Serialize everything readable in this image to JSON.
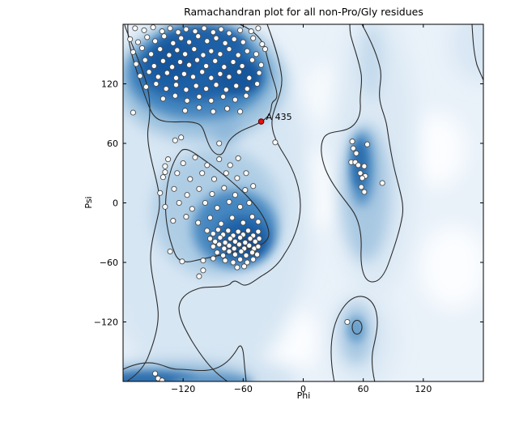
{
  "figure": {
    "title": "Ramachandran plot for all non-Pro/Gly residues"
  },
  "axes": {
    "xlabel": "Phi",
    "ylabel": "Psi",
    "xlim": [
      -180,
      180
    ],
    "ylim": [
      -180,
      180
    ],
    "xticks": [
      {
        "value": -120,
        "label": "−120"
      },
      {
        "value": -60,
        "label": "−60"
      },
      {
        "value": 0,
        "label": "0"
      },
      {
        "value": 60,
        "label": "60"
      },
      {
        "value": 120,
        "label": "120"
      }
    ],
    "yticks": [
      {
        "value": 120,
        "label": "120"
      },
      {
        "value": 60,
        "label": "60"
      },
      {
        "value": 0,
        "label": "0"
      },
      {
        "value": -60,
        "label": "−60"
      },
      {
        "value": -120,
        "label": "−120"
      }
    ]
  },
  "colors": {
    "density_dark": "#1d61a7",
    "density_mid": "#9dc2de",
    "density_light": "#d7e6f3",
    "plot_background": "#e9f1f9",
    "contour_line": "#2b2b2b",
    "point_fill": "#ffffff",
    "point_edge": "#4a4a4a",
    "outlier_fill": "#e51010",
    "outlier_edge": "#5a0000"
  },
  "chart_data": {
    "type": "scatter",
    "title": "Ramachandran plot for all non-Pro/Gly residues",
    "xlabel": "Phi",
    "ylabel": "Psi",
    "xlim": [
      -180,
      180
    ],
    "ylim": [
      -180,
      180
    ],
    "background": "blue kernel-density estimate with two contour levels",
    "legend": "none",
    "series": [
      {
        "name": "non-Pro/Gly residues",
        "marker": "circle",
        "fill": "#ffffff",
        "edge": "#4a4a4a",
        "points": [
          [
            -168,
            176
          ],
          [
            -159,
            174
          ],
          [
            -150,
            177
          ],
          [
            -141,
            173
          ],
          [
            -133,
            176
          ],
          [
            -125,
            172
          ],
          [
            -117,
            175
          ],
          [
            -108,
            173
          ],
          [
            -99,
            176
          ],
          [
            -90,
            172
          ],
          [
            -82,
            175
          ],
          [
            -74,
            171
          ],
          [
            -63,
            174
          ],
          [
            -52,
            173
          ],
          [
            -45,
            176
          ],
          [
            -173,
            165
          ],
          [
            -165,
            162
          ],
          [
            -156,
            167
          ],
          [
            -148,
            163
          ],
          [
            -139,
            168
          ],
          [
            -130,
            161
          ],
          [
            -122,
            166
          ],
          [
            -114,
            162
          ],
          [
            -105,
            168
          ],
          [
            -96,
            163
          ],
          [
            -87,
            166
          ],
          [
            -78,
            161
          ],
          [
            -69,
            165
          ],
          [
            -60,
            162
          ],
          [
            -50,
            166
          ],
          [
            -41,
            160
          ],
          [
            -170,
            152
          ],
          [
            -161,
            156
          ],
          [
            -152,
            150
          ],
          [
            -143,
            155
          ],
          [
            -134,
            149
          ],
          [
            -126,
            154
          ],
          [
            -118,
            150
          ],
          [
            -109,
            155
          ],
          [
            -100,
            149
          ],
          [
            -92,
            153
          ],
          [
            -83,
            150
          ],
          [
            -74,
            155
          ],
          [
            -65,
            149
          ],
          [
            -56,
            153
          ],
          [
            -47,
            150
          ],
          [
            -38,
            155
          ],
          [
            -167,
            140
          ],
          [
            -158,
            144
          ],
          [
            -149,
            138
          ],
          [
            -140,
            143
          ],
          [
            -131,
            137
          ],
          [
            -123,
            142
          ],
          [
            -114,
            139
          ],
          [
            -106,
            144
          ],
          [
            -97,
            138
          ],
          [
            -88,
            143
          ],
          [
            -79,
            137
          ],
          [
            -70,
            142
          ],
          [
            -61,
            138
          ],
          [
            -51,
            144
          ],
          [
            -42,
            139
          ],
          [
            -163,
            128
          ],
          [
            -154,
            132
          ],
          [
            -145,
            127
          ],
          [
            -136,
            131
          ],
          [
            -127,
            126
          ],
          [
            -119,
            130
          ],
          [
            -110,
            127
          ],
          [
            -101,
            132
          ],
          [
            -92,
            126
          ],
          [
            -83,
            130
          ],
          [
            -74,
            127
          ],
          [
            -64,
            132
          ],
          [
            -54,
            126
          ],
          [
            -44,
            131
          ],
          [
            -157,
            117
          ],
          [
            -147,
            120
          ],
          [
            -137,
            115
          ],
          [
            -127,
            119
          ],
          [
            -117,
            114
          ],
          [
            -107,
            118
          ],
          [
            -97,
            115
          ],
          [
            -87,
            119
          ],
          [
            -77,
            114
          ],
          [
            -67,
            118
          ],
          [
            -56,
            115
          ],
          [
            -46,
            120
          ],
          [
            -140,
            105
          ],
          [
            -128,
            108
          ],
          [
            -116,
            103
          ],
          [
            -104,
            107
          ],
          [
            -92,
            103
          ],
          [
            -80,
            107
          ],
          [
            -68,
            104
          ],
          [
            -57,
            108
          ],
          [
            -118,
            93
          ],
          [
            -104,
            96
          ],
          [
            -90,
            92
          ],
          [
            -76,
            95
          ],
          [
            -63,
            92
          ],
          [
            -135,
            44
          ],
          [
            -120,
            40
          ],
          [
            -108,
            46
          ],
          [
            -96,
            38
          ],
          [
            -84,
            44
          ],
          [
            -73,
            38
          ],
          [
            -65,
            45
          ],
          [
            -140,
            26
          ],
          [
            -126,
            30
          ],
          [
            -113,
            24
          ],
          [
            -101,
            30
          ],
          [
            -89,
            24
          ],
          [
            -77,
            30
          ],
          [
            -66,
            25
          ],
          [
            -57,
            30
          ],
          [
            -143,
            10
          ],
          [
            -129,
            14
          ],
          [
            -116,
            8
          ],
          [
            -104,
            14
          ],
          [
            -91,
            9
          ],
          [
            -79,
            15
          ],
          [
            -68,
            8
          ],
          [
            -58,
            13
          ],
          [
            -50,
            17
          ],
          [
            -138,
            -4
          ],
          [
            -124,
            0
          ],
          [
            -111,
            -6
          ],
          [
            -98,
            0
          ],
          [
            -86,
            -5
          ],
          [
            -74,
            1
          ],
          [
            -63,
            -4
          ],
          [
            -54,
            0
          ],
          [
            -130,
            -18
          ],
          [
            -117,
            -14
          ],
          [
            -105,
            -20
          ],
          [
            -93,
            -15
          ],
          [
            -82,
            -21
          ],
          [
            -71,
            -15
          ],
          [
            -60,
            -20
          ],
          [
            -51,
            -14
          ],
          [
            -45,
            -19
          ],
          [
            -96,
            -28
          ],
          [
            -90,
            -31
          ],
          [
            -85,
            -27
          ],
          [
            -80,
            -32
          ],
          [
            -75,
            -28
          ],
          [
            -70,
            -33
          ],
          [
            -65,
            -29
          ],
          [
            -60,
            -32
          ],
          [
            -55,
            -28
          ],
          [
            -50,
            -33
          ],
          [
            -45,
            -29
          ],
          [
            -93,
            -36
          ],
          [
            -88,
            -39
          ],
          [
            -83,
            -35
          ],
          [
            -78,
            -40
          ],
          [
            -73,
            -36
          ],
          [
            -68,
            -39
          ],
          [
            -63,
            -35
          ],
          [
            -58,
            -40
          ],
          [
            -53,
            -36
          ],
          [
            -48,
            -39
          ],
          [
            -44,
            -36
          ],
          [
            -90,
            -44
          ],
          [
            -84,
            -42
          ],
          [
            -79,
            -46
          ],
          [
            -74,
            -43
          ],
          [
            -69,
            -46
          ],
          [
            -64,
            -42
          ],
          [
            -59,
            -46
          ],
          [
            -54,
            -43
          ],
          [
            -49,
            -46
          ],
          [
            -45,
            -44
          ],
          [
            -86,
            -50
          ],
          [
            -80,
            -53
          ],
          [
            -74,
            -49
          ],
          [
            -68,
            -52
          ],
          [
            -62,
            -49
          ],
          [
            -57,
            -53
          ],
          [
            -51,
            -50
          ],
          [
            -46,
            -52
          ],
          [
            -100,
            -58
          ],
          [
            -90,
            -56
          ],
          [
            -78,
            -58
          ],
          [
            -70,
            -60
          ],
          [
            -63,
            -57
          ],
          [
            -56,
            -60
          ],
          [
            -50,
            -57
          ],
          [
            -133,
            -49
          ],
          [
            -121,
            -59
          ],
          [
            -104,
            -74
          ],
          [
            -100,
            -68
          ],
          [
            -66,
            -65
          ],
          [
            -59,
            -64
          ],
          [
            49,
            62
          ],
          [
            64,
            59
          ],
          [
            50,
            55
          ],
          [
            53,
            50
          ],
          [
            48,
            41
          ],
          [
            52,
            41
          ],
          [
            55,
            38
          ],
          [
            61,
            37
          ],
          [
            57,
            30
          ],
          [
            62,
            27
          ],
          [
            59,
            25
          ],
          [
            58,
            16
          ],
          [
            61,
            11
          ],
          [
            79,
            20
          ],
          [
            -170,
            91
          ],
          [
            -122,
            66
          ],
          [
            -128,
            63
          ],
          [
            -138,
            37
          ],
          [
            -138,
            31
          ],
          [
            -84,
            60
          ],
          [
            -28,
            61
          ],
          [
            -148,
            -172
          ],
          [
            -145,
            -177
          ],
          [
            -141,
            -179
          ],
          [
            44,
            -120
          ]
        ]
      },
      {
        "name": "highlighted residue",
        "marker": "circle",
        "fill": "#e51010",
        "edge": "#5a0000",
        "points": [
          [
            -42,
            82
          ]
        ]
      }
    ],
    "annotations": [
      {
        "label": "A 435",
        "phi": -42,
        "psi": 82
      }
    ]
  }
}
